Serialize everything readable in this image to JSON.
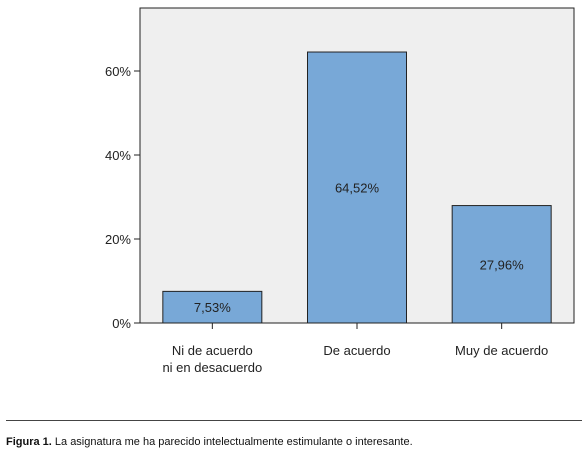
{
  "chart_data": {
    "type": "bar",
    "categories": [
      [
        "Ni de acuerdo",
        "ni en desacuerdo"
      ],
      [
        "De acuerdo"
      ],
      [
        "Muy de acuerdo"
      ]
    ],
    "values": [
      7.53,
      64.52,
      27.96
    ],
    "value_labels": [
      "7,53%",
      "64,52%",
      "27,96%"
    ],
    "yticks": [
      0,
      20,
      40,
      60
    ],
    "ytick_labels": [
      "0%",
      "20%",
      "40%",
      "60%"
    ],
    "ylim": [
      0,
      75
    ],
    "grid": false,
    "bar_color": "#78a8d7",
    "plot_background": "#efefef",
    "title": "",
    "xlabel": "",
    "ylabel": ""
  },
  "caption": {
    "lead": "Figura 1.",
    "text": " La asignatura me ha parecido intelectualmente estimulante o interesante."
  }
}
